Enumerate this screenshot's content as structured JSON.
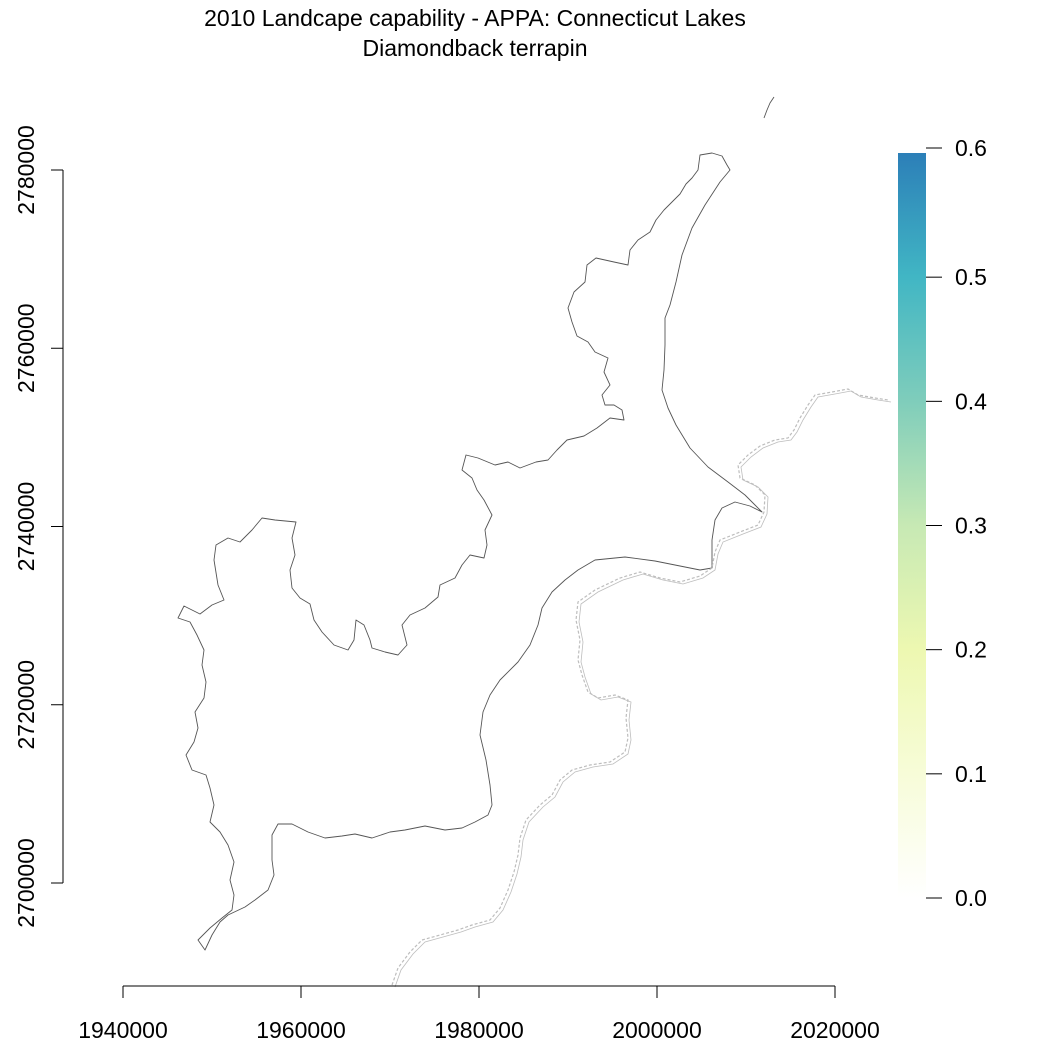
{
  "title": {
    "line1": "2010 Landcape capability - APPA: Connecticut Lakes",
    "line2": "Diamondback terrapin"
  },
  "x_axis": {
    "ticks": [
      1940000,
      1960000,
      1980000,
      2000000,
      2020000
    ],
    "labels": [
      "1940000",
      "1960000",
      "1980000",
      "2000000",
      "2020000"
    ]
  },
  "y_axis": {
    "ticks": [
      2700000,
      2720000,
      2740000,
      2760000,
      2780000
    ],
    "labels": [
      "2700000",
      "2720000",
      "2740000",
      "2760000",
      "2780000"
    ]
  },
  "legend": {
    "min": 0.0,
    "max": 0.6,
    "labels": [
      "0.0",
      "0.1",
      "0.2",
      "0.3",
      "0.4",
      "0.5",
      "0.6"
    ],
    "color_stops": [
      "#ffffff",
      "#f7fcd8",
      "#edf8b1",
      "#c7e9b4",
      "#7fcdbb",
      "#41b6c4",
      "#2c7fb8"
    ]
  },
  "colors": {
    "boundary": "#555555",
    "state_line": "#bdbdbd"
  },
  "raster_values": "none visible (all cells empty)"
}
